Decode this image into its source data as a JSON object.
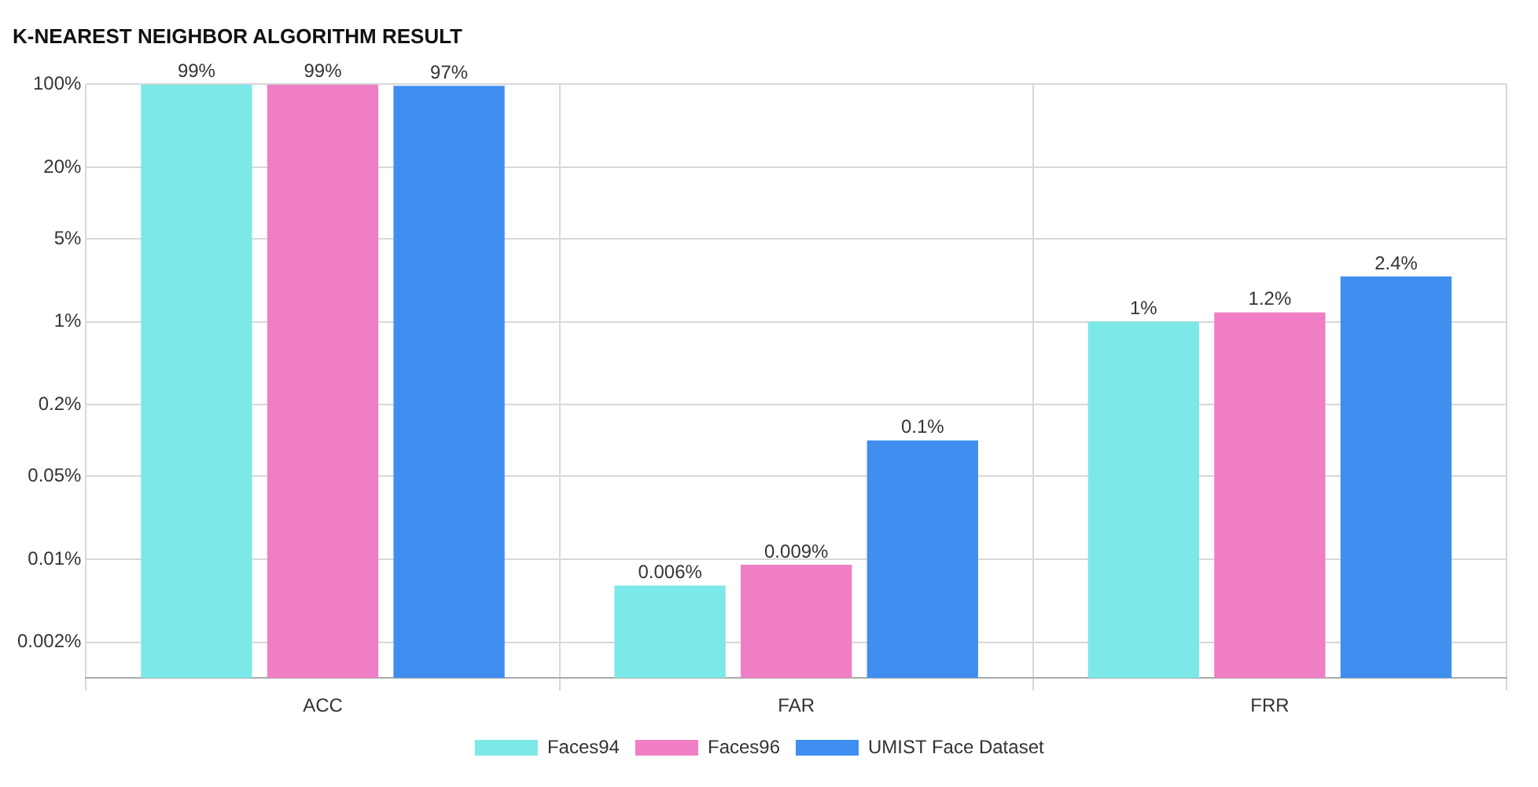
{
  "chart_data": {
    "type": "bar",
    "title": "K-NEAREST NEIGHBOR ALGORITHM RESULT",
    "categories": [
      "ACC",
      "FAR",
      "FRR"
    ],
    "series": [
      {
        "name": "Faces94",
        "color": "#7de8e8",
        "values": [
          99,
          0.006,
          1
        ],
        "value_labels": [
          "99%",
          "0.006%",
          "1%"
        ]
      },
      {
        "name": "Faces96",
        "color": "#f07ec4",
        "values": [
          99,
          0.009,
          1.2
        ],
        "value_labels": [
          "99%",
          "0.009%",
          "1.2%"
        ]
      },
      {
        "name": "UMIST Face Dataset",
        "color": "#3f8ef0",
        "values": [
          97,
          0.1,
          2.4
        ],
        "value_labels": [
          "97%",
          "0.1%",
          "2.4%"
        ]
      }
    ],
    "log": "y",
    "ylim": [
      0.001,
      100
    ],
    "yticks": [
      {
        "value": 0.002,
        "label": "0.002%"
      },
      {
        "value": 0.01,
        "label": "0.01%"
      },
      {
        "value": 0.05,
        "label": "0.05%"
      },
      {
        "value": 0.2,
        "label": "0.2%"
      },
      {
        "value": 1,
        "label": "1%"
      },
      {
        "value": 5,
        "label": "5%"
      },
      {
        "value": 20,
        "label": "20%"
      },
      {
        "value": 100,
        "label": "100%"
      }
    ],
    "grid": true,
    "legend": "bottom"
  }
}
